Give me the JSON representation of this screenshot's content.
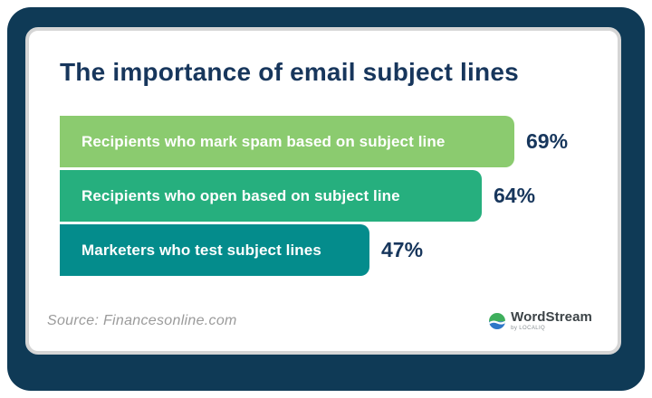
{
  "title": "The importance of email subject lines",
  "chart_data": {
    "type": "bar",
    "orientation": "horizontal",
    "title": "The importance of email subject lines",
    "categories": [
      "Recipients who mark spam based on subject line",
      "Recipients who open based on subject line",
      "Marketers who test subject lines"
    ],
    "values": [
      69,
      64,
      47
    ],
    "value_labels": [
      "69%",
      "64%",
      "47%"
    ],
    "bar_colors": [
      "#8BCB6F",
      "#26AF7E",
      "#048C8C"
    ],
    "xlim": [
      0,
      100
    ],
    "grid": false,
    "legend": false,
    "bar_label_color": "#FFFFFF",
    "value_label_color": "#17365C"
  },
  "footer": {
    "source": "Source: Financesonline.com",
    "logo_text": "WordStream",
    "logo_byline": "by LOCALIQ"
  },
  "colors": {
    "frame": "#0F3A56",
    "card_background": "#FFFFFF",
    "card_border": "#D5D5D5",
    "title": "#17365C"
  }
}
